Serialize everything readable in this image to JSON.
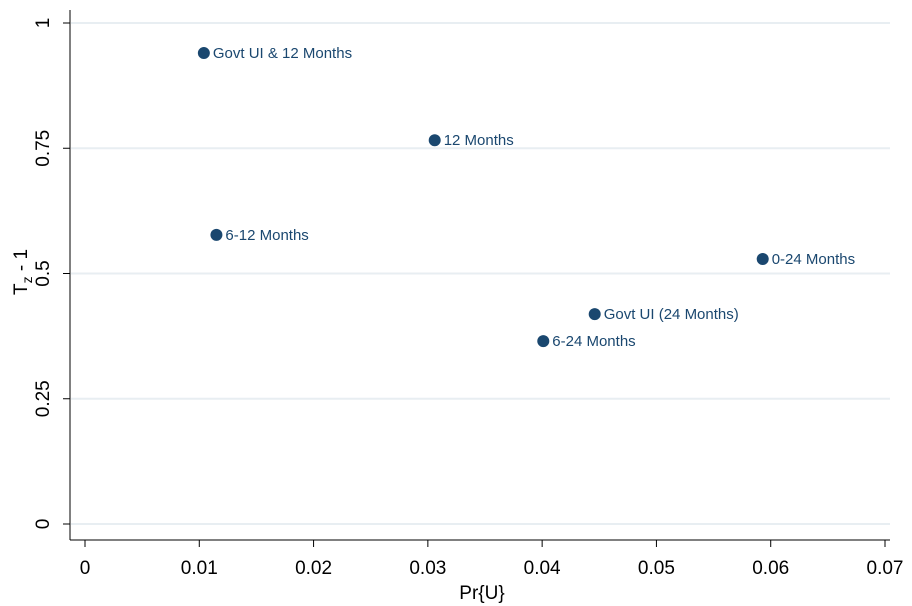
{
  "chart_data": {
    "type": "scatter",
    "x_label": "Pr{U}",
    "y_label": {
      "base": "T",
      "sub": "z",
      "rest": " - 1"
    },
    "x": [
      0.0104,
      0.0306,
      0.0115,
      0.0593,
      0.0446,
      0.0401
    ],
    "values": [
      0.94,
      0.766,
      0.577,
      0.529,
      0.419,
      0.365
    ],
    "point_labels": [
      "Govt UI & 12 Months",
      "12 Months",
      "6-12 Months",
      "0-24 Months",
      "Govt UI (24 Months)",
      "6-24 Months"
    ],
    "color": "#1a476f",
    "xlim": [
      0,
      0.07
    ],
    "xticks": [
      0,
      0.01,
      0.02,
      0.03,
      0.04,
      0.05,
      0.06,
      0.07
    ],
    "ylim": [
      0,
      1
    ],
    "yticks": [
      0,
      0.25,
      0.5,
      0.75,
      1
    ],
    "grid": true
  }
}
